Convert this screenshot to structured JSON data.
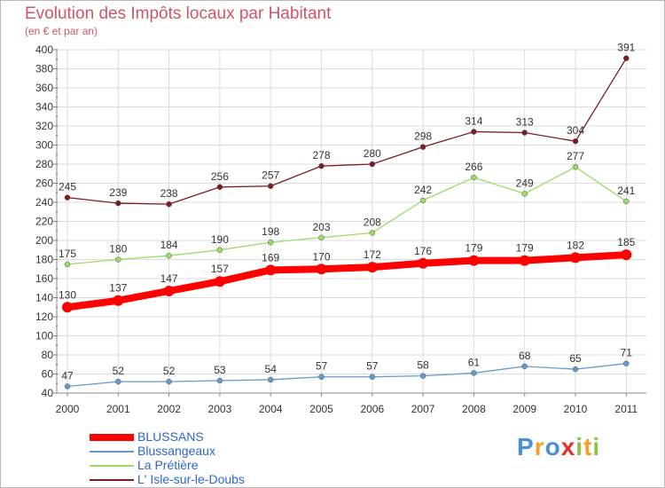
{
  "chart_data": {
    "type": "line",
    "title": "Evolution des Impôts locaux par Habitant",
    "subtitle": "(en € et par an)",
    "x": [
      "2000",
      "2001",
      "2002",
      "2003",
      "2004",
      "2005",
      "2006",
      "2007",
      "2008",
      "2009",
      "2010",
      "2011"
    ],
    "ylim": [
      40,
      400
    ],
    "yticks": [
      "40",
      "60",
      "80",
      "100",
      "120",
      "140",
      "160",
      "180",
      "200",
      "220",
      "240",
      "260",
      "280",
      "300",
      "320",
      "340",
      "360",
      "380",
      "400"
    ],
    "grid": true,
    "legend_position": "bottom-left",
    "series": [
      {
        "name": "BLUSSANS",
        "color": "#ff0000",
        "values": [
          130,
          137,
          147,
          157,
          169,
          170,
          172,
          176,
          179,
          179,
          182,
          185
        ]
      },
      {
        "name": "Blussangeaux",
        "color": "#6699cc",
        "values": [
          47,
          52,
          52,
          53,
          54,
          57,
          57,
          58,
          61,
          68,
          65,
          71
        ]
      },
      {
        "name": "La Prétière",
        "color": "#99dd66",
        "values": [
          175,
          180,
          184,
          190,
          198,
          203,
          208,
          242,
          266,
          249,
          277,
          241
        ]
      },
      {
        "name": "L' Isle-sur-le-Doubs",
        "color": "#7a1e22",
        "values": [
          245,
          239,
          238,
          256,
          257,
          278,
          280,
          298,
          314,
          313,
          304,
          391
        ]
      }
    ]
  },
  "logo": {
    "letters": [
      "P",
      "r",
      "o",
      "x",
      "i",
      "t",
      "i"
    ],
    "colors": [
      "#4a90d9",
      "#f0a030",
      "#4a90d9",
      "#e63030",
      "#8bc34a",
      "#f0a030",
      "#8bc34a"
    ]
  }
}
